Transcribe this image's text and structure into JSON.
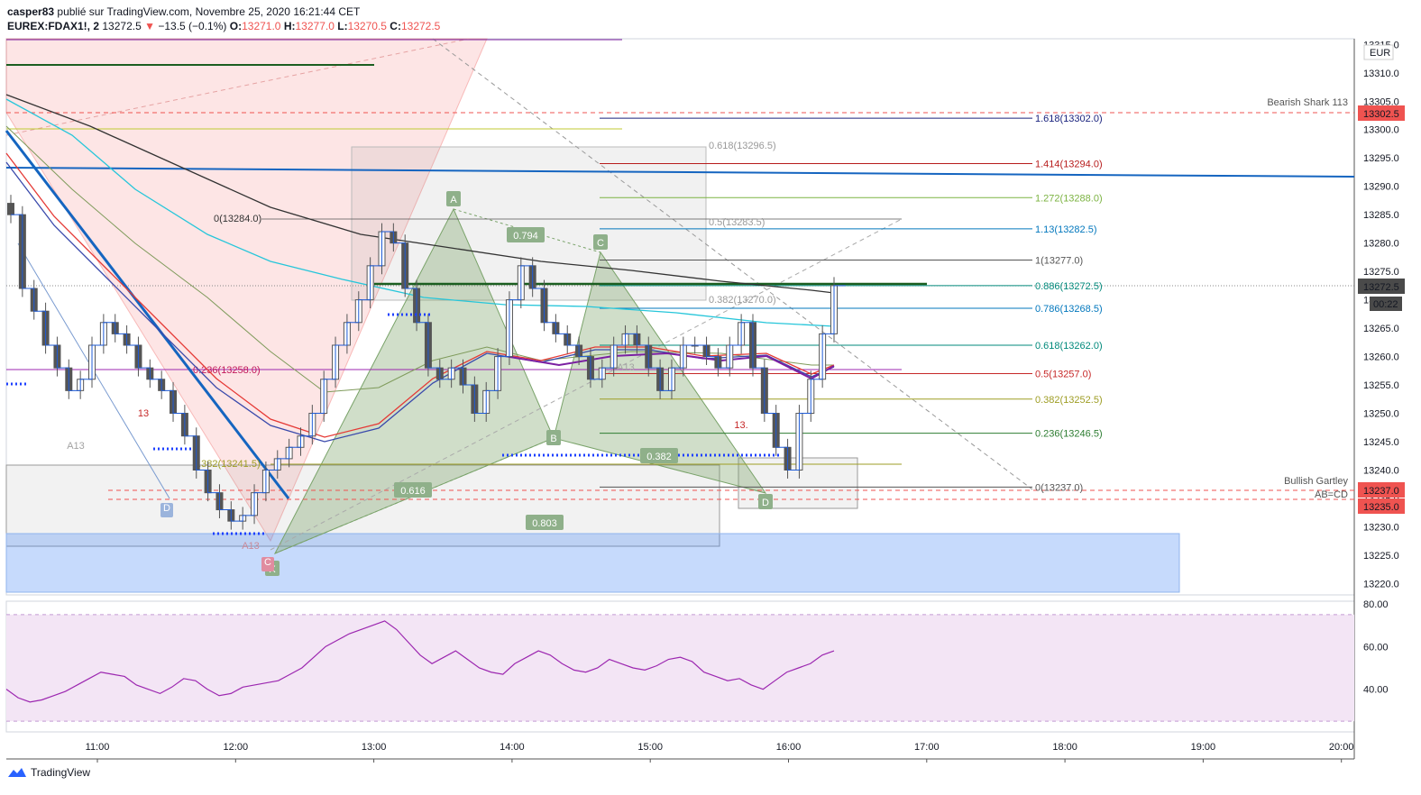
{
  "header": {
    "author": "casper83",
    "published_text": "publié sur TradingView.com, Novembre 25, 2020 16:21:44 CET",
    "symbol": "EUREX:FDAX1!, 2",
    "price": "13272.5",
    "change": "−13.5 (−0.1%)",
    "open_label": "O:",
    "open": "13271.0",
    "high_label": "H:",
    "high": "13277.0",
    "low_label": "L:",
    "low": "13270.5",
    "close_label": "C:",
    "close": "13272.5"
  },
  "footer": {
    "brand": "TradingView"
  },
  "colors": {
    "down": "#ef5350",
    "up": "#26a69a",
    "blue_line": "#1565c0",
    "pattern_green": "#7aa36a",
    "rsi_bg": "#f3e5f5",
    "rsi_line": "#9c27b0"
  },
  "chart_data": [
    {
      "type": "candlestick",
      "currency": "EUR",
      "ylim": [
        13218,
        13316
      ],
      "y_ticks": [
        "13315.0",
        "13310.0",
        "13305.0",
        "13300.0",
        "13295.0",
        "13290.0",
        "13285.0",
        "13280.0",
        "13275.0",
        "13270.0",
        "13265.0",
        "13260.0",
        "13255.0",
        "13250.0",
        "13245.0",
        "13240.0",
        "13235.0",
        "13230.0",
        "13225.0",
        "13220.0"
      ],
      "x_ticks": [
        "11:00",
        "12:00",
        "13:00",
        "14:00",
        "15:00",
        "16:00",
        "17:00",
        "18:00",
        "19:00",
        "20:00"
      ],
      "last_price": "13272.5",
      "countdown": "00:22",
      "price_tags": [
        {
          "label": "Bearish Shark 113",
          "value": "13302.5"
        },
        {
          "label": "Bullish Gartley",
          "value": "13237.0"
        },
        {
          "label": "AB=CD",
          "value": "13235.0"
        }
      ],
      "fib_levels": [
        {
          "label": "1.618(13302.0)",
          "value": 13302.0,
          "color": "#1a237e"
        },
        {
          "label": "1.414(13294.0)",
          "value": 13294.0,
          "color": "#b71c1c"
        },
        {
          "label": "1.272(13288.0)",
          "value": 13288.0,
          "color": "#7cb342"
        },
        {
          "label": "1.13(13282.5)",
          "value": 13282.5,
          "color": "#0277bd"
        },
        {
          "label": "1(13277.0)",
          "value": 13277.0,
          "color": "#555555"
        },
        {
          "label": "0.886(13272.5)",
          "value": 13272.5,
          "color": "#00897b"
        },
        {
          "label": "0.786(13268.5)",
          "value": 13268.5,
          "color": "#0277bd"
        },
        {
          "label": "0.618(13262.0)",
          "value": 13262.0,
          "color": "#00897b"
        },
        {
          "label": "0.5(13257.0)",
          "value": 13257.0,
          "color": "#c62828"
        },
        {
          "label": "0.382(13252.5)",
          "value": 13252.5,
          "color": "#9e9d24"
        },
        {
          "label": "0.236(13246.5)",
          "value": 13246.5,
          "color": "#2e7d32"
        },
        {
          "label": "0(13237.0)",
          "value": 13237.0,
          "color": "#555555"
        }
      ],
      "other_labels": [
        {
          "text": "0.618(13296.5)",
          "value": 13296.5
        },
        {
          "text": "0(13284.0)",
          "value": 13284.0
        },
        {
          "text": "0.5(13283.5)",
          "value": 13283.5
        },
        {
          "text": "0.382(13270.0)",
          "value": 13270.0
        },
        {
          "text": "0.236(13258.0)",
          "value": 13258.0
        },
        {
          "text": "0.382(13241.5)",
          "value": 13241.5
        }
      ],
      "pattern_points": [
        "X",
        "A",
        "B",
        "C",
        "D"
      ],
      "ratios": [
        "0.794",
        "0.616",
        "0.803",
        "0.382"
      ],
      "markers": [
        "A13",
        "13",
        "13.",
        "A13",
        "A13",
        "D",
        "C"
      ],
      "series": [
        {
          "name": "close",
          "values": [
            13285,
            13272,
            13268,
            13262,
            13258,
            13254,
            13256,
            13262,
            13266,
            13264,
            13262,
            13258,
            13256,
            13254,
            13250,
            13246,
            13240,
            13236,
            13233,
            13231,
            13232,
            13236,
            13240,
            13242,
            13244,
            13246,
            13250,
            13256,
            13262,
            13266,
            13270,
            13276,
            13282,
            13280,
            13272,
            13266,
            13258,
            13256,
            13258,
            13255,
            13250,
            13254,
            13260,
            13270,
            13276,
            13272,
            13266,
            13264,
            13262,
            13260,
            13256,
            13258,
            13262,
            13264,
            13262,
            13258,
            13254,
            13258,
            13262,
            13262,
            13260,
            13258,
            13262,
            13266,
            13258,
            13250,
            13244,
            13240,
            13250,
            13256,
            13264,
            13272.5
          ]
        }
      ]
    },
    {
      "type": "line",
      "ylim": [
        20,
        80
      ],
      "y_ticks": [
        "80.00",
        "60.00",
        "40.00"
      ],
      "bands": [
        75,
        25
      ],
      "series": [
        {
          "values": [
            40,
            36,
            34,
            35,
            37,
            39,
            42,
            45,
            48,
            47,
            46,
            42,
            40,
            38,
            41,
            45,
            44,
            40,
            37,
            38,
            41,
            42,
            43,
            44,
            47,
            50,
            55,
            60,
            63,
            66,
            68,
            70,
            72,
            68,
            62,
            56,
            52,
            55,
            58,
            54,
            50,
            48,
            47,
            52,
            55,
            58,
            56,
            52,
            49,
            48,
            50,
            54,
            52,
            50,
            49,
            51,
            54,
            55,
            53,
            48,
            46,
            44,
            45,
            42,
            40,
            44,
            48,
            50,
            52,
            56,
            58
          ]
        }
      ]
    }
  ]
}
